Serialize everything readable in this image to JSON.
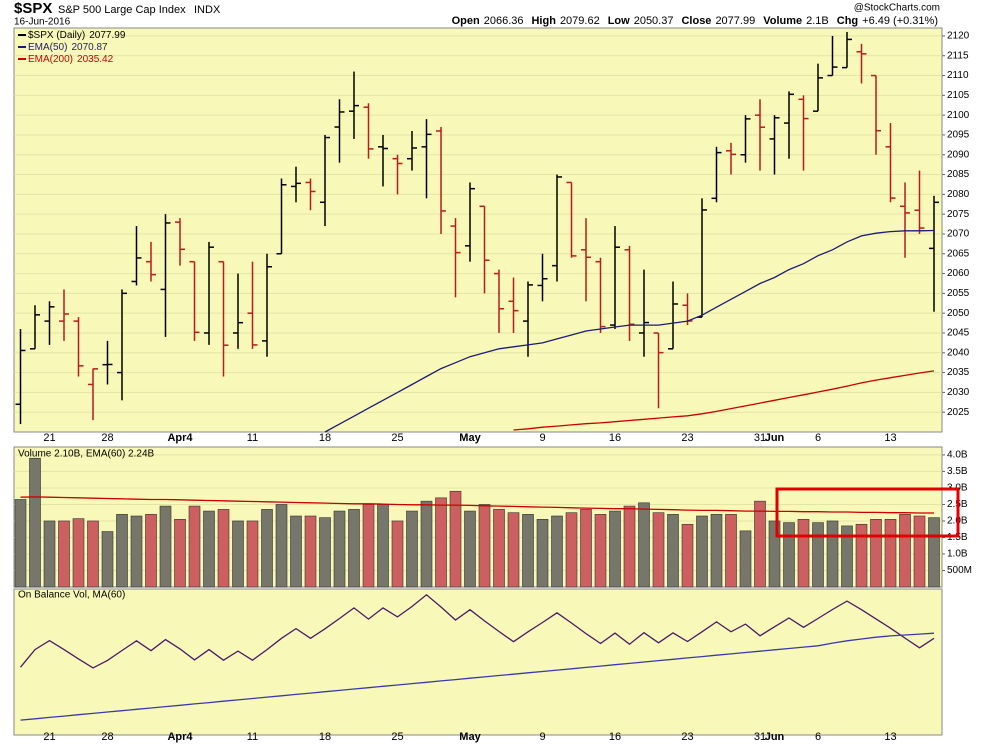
{
  "chart_data": [
    {
      "type": "ohlc",
      "title": "$SPX",
      "subtitle": "S&P 500 Large Cap Index",
      "exchange": "INDX",
      "date": "16-Jun-2016",
      "source": "@StockCharts.com",
      "quote": [
        {
          "label": "Open",
          "value": 2066.36
        },
        {
          "label": "High",
          "value": 2079.62
        },
        {
          "label": "Low",
          "value": 2050.37
        },
        {
          "label": "Close",
          "value": 2077.99
        },
        {
          "label": "Volume",
          "value": "2.1B"
        },
        {
          "label": "Chg",
          "value": "+6.49 (+0.31%)"
        }
      ],
      "ohlc_name": "$SPX (Daily)",
      "up_color": "#000000",
      "down_color": "#b81c1c",
      "categories": [
        null,
        null,
        "21",
        null,
        null,
        null,
        "28",
        null,
        null,
        null,
        null,
        "Apr4",
        null,
        null,
        null,
        null,
        "11",
        null,
        null,
        null,
        null,
        "18",
        null,
        null,
        null,
        null,
        "25",
        null,
        null,
        null,
        null,
        "May",
        null,
        null,
        null,
        null,
        "9",
        null,
        null,
        null,
        null,
        "16",
        null,
        null,
        null,
        null,
        "23",
        null,
        null,
        null,
        null,
        "31",
        "Jun",
        null,
        null,
        "6",
        null,
        null,
        null,
        null,
        "13",
        null,
        null,
        null
      ],
      "open": [
        2027,
        2041,
        2048,
        2048,
        2048,
        2032,
        2037,
        2035,
        2058,
        2063,
        2056,
        2073,
        2063,
        2045,
        2063,
        2045,
        2050,
        2043,
        2065,
        2082,
        2083,
        2078,
        2097,
        2101,
        2102,
        2092,
        2089,
        2089,
        2092,
        2096,
        2072,
        2067,
        2077,
        2060,
        2053,
        2048,
        2057,
        2062,
        2083,
        2066,
        2063,
        2047,
        2066,
        2045,
        2045,
        2041,
        2052,
        2049,
        2079,
        2091,
        2090,
        2100,
        2094,
        2098,
        2104,
        2101,
        2110,
        2112,
        2116,
        2110,
        2092,
        2077,
        2076,
        2066.36
      ],
      "high": [
        2046,
        2052,
        2053,
        2056,
        2049,
        2036,
        2043,
        2056,
        2072,
        2068,
        2075,
        2074,
        2063,
        2068,
        2063,
        2060,
        2063,
        2065,
        2084,
        2087,
        2084,
        2095,
        2104,
        2111,
        2103,
        2095,
        2090,
        2096,
        2099,
        2097,
        2074,
        2083,
        2077,
        2061,
        2059,
        2058,
        2065,
        2085,
        2083,
        2074,
        2064,
        2072,
        2067,
        2061,
        2045,
        2058,
        2055,
        2079,
        2092,
        2093,
        2100,
        2104,
        2100,
        2106,
        2105,
        2113,
        2120,
        2121,
        2118,
        2110,
        2098,
        2083,
        2086,
        2079.62
      ],
      "low": [
        2022,
        2041,
        2042,
        2043,
        2034,
        2023,
        2032,
        2028,
        2057,
        2058,
        2044,
        2062,
        2043,
        2042,
        2034,
        2041,
        2041,
        2039,
        2065,
        2078,
        2076,
        2072,
        2088,
        2094,
        2089,
        2082,
        2080,
        2086,
        2079,
        2070,
        2054,
        2063,
        2055,
        2045,
        2045,
        2039,
        2053,
        2058,
        2064,
        2053,
        2045,
        2046,
        2043,
        2039,
        2026,
        2041,
        2047,
        2049,
        2078,
        2085,
        2088,
        2086,
        2085,
        2089,
        2086,
        2101,
        2110,
        2112,
        2108,
        2090,
        2078,
        2064,
        2070,
        2050.37
      ],
      "close": [
        2040.59,
        2049.58,
        2051.6,
        2049.8,
        2036.71,
        2035.94,
        2037.05,
        2055.01,
        2063.95,
        2059.74,
        2072.78,
        2066.13,
        2045.17,
        2066.66,
        2041.91,
        2047.6,
        2041.99,
        2061.72,
        2082.42,
        2082.78,
        2080.73,
        2094.34,
        2100.8,
        2102.4,
        2091.48,
        2091.58,
        2087.79,
        2091.7,
        2095.15,
        2075.81,
        2065.3,
        2081.43,
        2063.37,
        2051.12,
        2050.63,
        2057.14,
        2058.69,
        2084.39,
        2064.46,
        2064.11,
        2046.61,
        2066.66,
        2047.21,
        2047.63,
        2040.04,
        2052.32,
        2048.04,
        2076.06,
        2090.54,
        2090.1,
        2099.06,
        2096.95,
        2099.33,
        2105.26,
        2099.13,
        2109.41,
        2112.13,
        2119.12,
        2115.48,
        2096.07,
        2079.06,
        2075.32,
        2071.5,
        2077.99
      ],
      "series": [
        {
          "name": "EMA(50)",
          "color": "#1c1c78",
          "values": [
            null,
            null,
            null,
            null,
            null,
            null,
            null,
            null,
            null,
            null,
            null,
            null,
            null,
            null,
            null,
            null,
            null,
            null,
            null,
            null,
            null,
            2020,
            2022,
            2024,
            2026,
            2028,
            2030,
            2032,
            2034,
            2036,
            2037.5,
            2039,
            2040,
            2041,
            2041.5,
            2042,
            2042.5,
            2043.5,
            2044.5,
            2045.5,
            2046,
            2046.5,
            2047,
            2047,
            2047,
            2047.5,
            2048,
            2049.5,
            2051.5,
            2053.5,
            2055.5,
            2057.5,
            2059,
            2061,
            2062.5,
            2064.5,
            2066,
            2068,
            2069.5,
            2070.2,
            2070.6,
            2070.8,
            2070.8,
            2070.87
          ]
        },
        {
          "name": "EMA(200)",
          "color": "#cc0000",
          "values": [
            null,
            null,
            null,
            null,
            null,
            null,
            null,
            null,
            null,
            null,
            null,
            null,
            null,
            null,
            null,
            null,
            null,
            null,
            null,
            null,
            null,
            null,
            null,
            null,
            null,
            null,
            null,
            null,
            null,
            null,
            null,
            null,
            null,
            null,
            2020.5,
            2020.8,
            2021.2,
            2021.5,
            2021.8,
            2022.1,
            2022.3,
            2022.6,
            2022.9,
            2023.2,
            2023.5,
            2023.8,
            2024.1,
            2024.6,
            2025.2,
            2025.9,
            2026.6,
            2027.3,
            2028,
            2028.7,
            2029.4,
            2030.1,
            2030.8,
            2031.6,
            2032.4,
            2033.1,
            2033.7,
            2034.3,
            2034.9,
            2035.42
          ]
        }
      ],
      "ylim": [
        2020,
        2122
      ],
      "yticks": [
        2025,
        2030,
        2035,
        2040,
        2045,
        2050,
        2055,
        2060,
        2065,
        2070,
        2075,
        2080,
        2085,
        2090,
        2095,
        2100,
        2105,
        2110,
        2115,
        2120
      ],
      "grid": true
    },
    {
      "type": "bar",
      "legend_text": "Volume 2.10B, EMA(60) 2.24B",
      "up_color": "#76766a",
      "down_color": "#cc6060",
      "values": [
        2.65,
        3.9,
        2.0,
        2.0,
        2.07,
        2.0,
        1.68,
        2.2,
        2.15,
        2.2,
        2.45,
        2.05,
        2.45,
        2.3,
        2.35,
        2.0,
        2.0,
        2.35,
        2.5,
        2.15,
        2.15,
        2.1,
        2.3,
        2.35,
        2.5,
        2.5,
        2.0,
        2.3,
        2.6,
        2.7,
        2.9,
        2.3,
        2.5,
        2.35,
        2.25,
        2.2,
        2.05,
        2.15,
        2.25,
        2.35,
        2.2,
        2.3,
        2.45,
        2.55,
        2.25,
        2.2,
        1.9,
        2.15,
        2.2,
        2.2,
        1.7,
        2.6,
        2.0,
        1.95,
        2.05,
        1.95,
        2.0,
        1.85,
        1.9,
        2.05,
        2.05,
        2.2,
        2.15,
        2.1
      ],
      "series": [
        {
          "color": "#cc0000",
          "values": [
            2.72,
            2.73,
            2.72,
            2.71,
            2.7,
            2.69,
            2.68,
            2.67,
            2.66,
            2.65,
            2.65,
            2.64,
            2.63,
            2.62,
            2.61,
            2.6,
            2.59,
            2.58,
            2.57,
            2.56,
            2.55,
            2.54,
            2.53,
            2.52,
            2.52,
            2.51,
            2.5,
            2.49,
            2.49,
            2.48,
            2.48,
            2.47,
            2.46,
            2.45,
            2.44,
            2.43,
            2.42,
            2.41,
            2.4,
            2.39,
            2.38,
            2.37,
            2.37,
            2.36,
            2.35,
            2.34,
            2.33,
            2.32,
            2.32,
            2.31,
            2.3,
            2.3,
            2.29,
            2.29,
            2.28,
            2.28,
            2.27,
            2.27,
            2.26,
            2.26,
            2.25,
            2.25,
            2.24,
            2.24
          ]
        }
      ],
      "ylim": [
        0,
        4.24
      ],
      "yticks": [
        {
          "value": 0.5,
          "label": "500M"
        },
        {
          "value": 1,
          "label": "1.0B"
        },
        {
          "value": 1.5,
          "label": "1.5B"
        },
        {
          "value": 2,
          "label": "2.0B"
        },
        {
          "value": 2.5,
          "label": "2.5B"
        },
        {
          "value": 3,
          "label": "3.0B"
        },
        {
          "value": 3.5,
          "label": "3.5B"
        },
        {
          "value": 4,
          "label": "4.0B"
        }
      ],
      "grid": true
    },
    {
      "type": "line",
      "legend_text": "On Balance Vol, MA(60)",
      "series": [
        {
          "color": "#4a1a6a",
          "values": [
            2.65,
            6.55,
            8.55,
            6.55,
            4.48,
            2.48,
            4.16,
            6.36,
            8.51,
            6.31,
            8.76,
            6.71,
            4.26,
            6.56,
            4.21,
            6.21,
            4.21,
            6.56,
            9.06,
            11.21,
            9.06,
            11.16,
            13.46,
            15.81,
            13.31,
            15.81,
            13.81,
            16.11,
            18.71,
            16.01,
            13.11,
            15.41,
            12.91,
            10.56,
            8.31,
            10.51,
            12.56,
            14.71,
            12.46,
            10.11,
            7.91,
            10.21,
            7.76,
            10.31,
            8.06,
            10.26,
            8.36,
            10.51,
            12.71,
            10.51,
            12.21,
            9.61,
            11.61,
            13.56,
            11.51,
            13.46,
            15.46,
            17.31,
            15.41,
            13.36,
            11.31,
            9.11,
            6.96,
            9.06
          ]
        },
        {
          "color": "#3a3ab0",
          "values": [
            -9.1,
            -8.8,
            -8.5,
            -8.2,
            -7.9,
            -7.6,
            -7.3,
            -7.0,
            -6.7,
            -6.4,
            -6.1,
            -5.8,
            -5.5,
            -5.2,
            -4.9,
            -4.6,
            -4.3,
            -4.0,
            -3.7,
            -3.4,
            -3.1,
            -2.8,
            -2.5,
            -2.2,
            -1.9,
            -1.6,
            -1.3,
            -1.0,
            -0.7,
            -0.4,
            -0.1,
            0.2,
            0.5,
            0.8,
            1.1,
            1.4,
            1.7,
            2.0,
            2.3,
            2.6,
            2.9,
            3.2,
            3.5,
            3.8,
            4.1,
            4.4,
            4.7,
            5.0,
            5.3,
            5.6,
            5.9,
            6.2,
            6.5,
            6.8,
            7.1,
            7.4,
            8.0,
            8.5,
            8.9,
            9.3,
            9.6,
            9.8,
            10.0,
            10.2
          ]
        }
      ],
      "ylim": [
        -12.4,
        20
      ]
    }
  ]
}
